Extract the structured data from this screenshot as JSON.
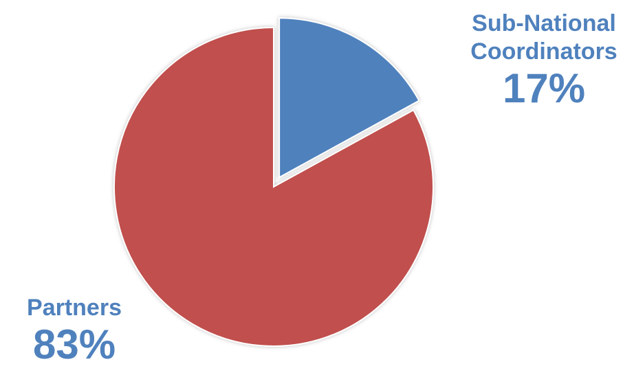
{
  "chart_data": {
    "type": "pie",
    "slices": [
      {
        "name": "Sub-National Coordinators",
        "name_lines": [
          "Sub-National",
          "Coordinators"
        ],
        "value": 17,
        "label": "17%",
        "color": "#4f81bd",
        "exploded": true
      },
      {
        "name": "Partners",
        "name_lines": [
          "Partners"
        ],
        "value": 83,
        "label": "83%",
        "color": "#c0504d",
        "exploded": false
      }
    ],
    "start_angle": "12 o'clock",
    "direction": "clockwise",
    "label_color": "#4f81bd",
    "legend": "none"
  }
}
